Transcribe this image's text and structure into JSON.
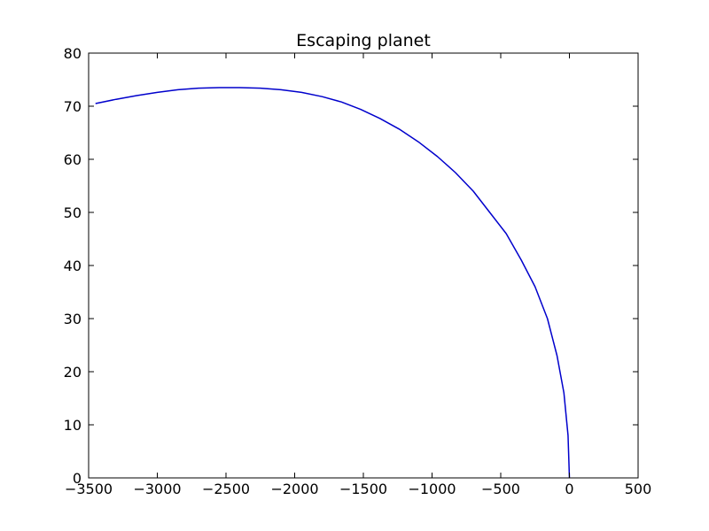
{
  "chart_data": {
    "type": "line",
    "title": "Escaping planet",
    "xlabel": "",
    "ylabel": "",
    "xlim": [
      -3500,
      500
    ],
    "ylim": [
      0,
      80
    ],
    "xticks": [
      -3500,
      -3000,
      -2500,
      -2000,
      -1500,
      -1000,
      -500,
      0,
      500
    ],
    "yticks": [
      0,
      10,
      20,
      30,
      40,
      50,
      60,
      70,
      80
    ],
    "xtick_labels": [
      "−3500",
      "−3000",
      "−2500",
      "−2000",
      "−1500",
      "−1000",
      "−500",
      "0",
      "500"
    ],
    "ytick_labels": [
      "0",
      "10",
      "20",
      "30",
      "40",
      "50",
      "60",
      "70",
      "80"
    ],
    "grid": false,
    "legend": "none",
    "series": [
      {
        "color": "#0000cc",
        "x": [
          0,
          -10,
          -40,
          -90,
          -160,
          -250,
          -350,
          -460,
          -580,
          -700,
          -830,
          -960,
          -1100,
          -1240,
          -1380,
          -1520,
          -1660,
          -1800,
          -1950,
          -2100,
          -2250,
          -2400,
          -2550,
          -2700,
          -2850,
          -3000,
          -3150,
          -3300,
          -3450
        ],
        "y": [
          0,
          8,
          16,
          23,
          30,
          36,
          41,
          46,
          50,
          54,
          57.5,
          60.5,
          63.3,
          65.7,
          67.7,
          69.4,
          70.8,
          71.8,
          72.6,
          73.1,
          73.4,
          73.5,
          73.5,
          73.4,
          73.1,
          72.6,
          72.0,
          71.3,
          70.5
        ]
      }
    ]
  }
}
